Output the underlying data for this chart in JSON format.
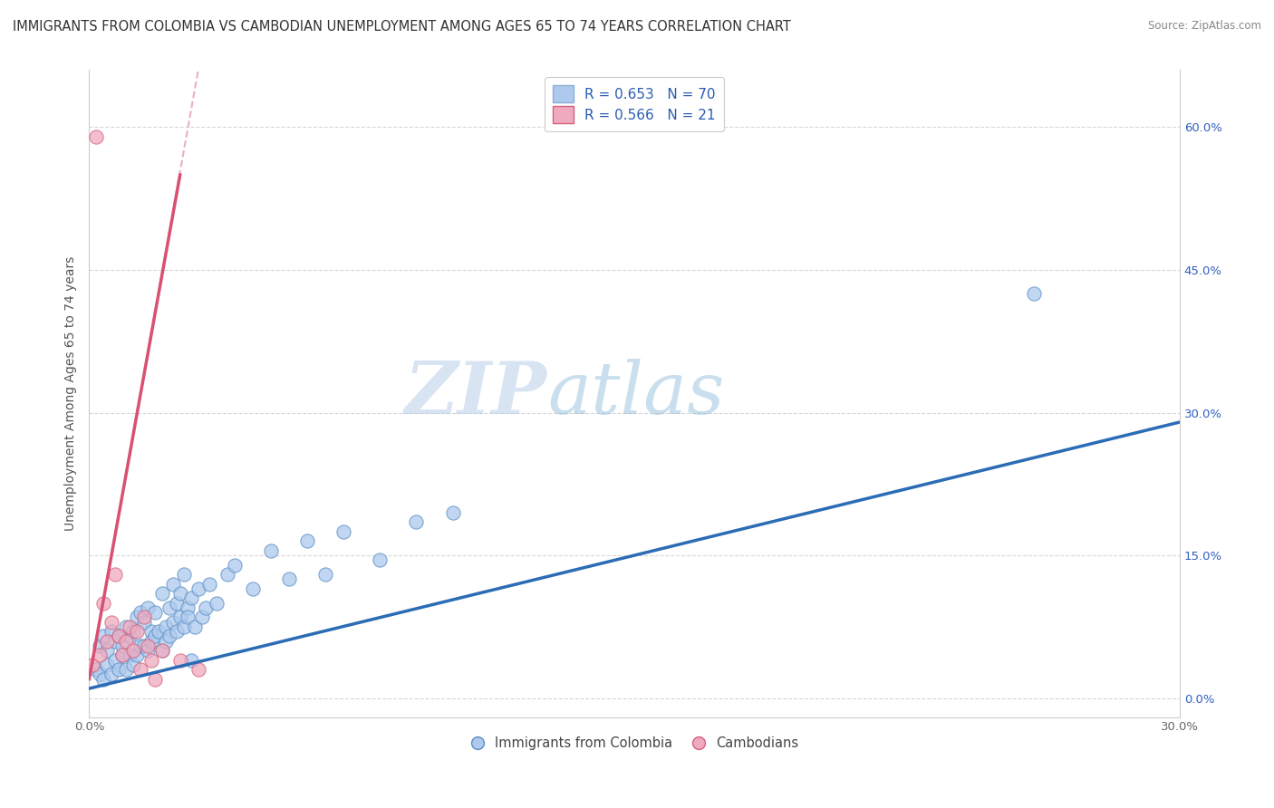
{
  "title": "IMMIGRANTS FROM COLOMBIA VS CAMBODIAN UNEMPLOYMENT AMONG AGES 65 TO 74 YEARS CORRELATION CHART",
  "source": "Source: ZipAtlas.com",
  "ylabel": "Unemployment Among Ages 65 to 74 years",
  "xlim": [
    0.0,
    0.3
  ],
  "ylim": [
    -0.02,
    0.66
  ],
  "xticks": [
    0.0,
    0.05,
    0.1,
    0.15,
    0.2,
    0.25,
    0.3
  ],
  "xticklabels": [
    "0.0%",
    "",
    "",
    "",
    "",
    "",
    "30.0%"
  ],
  "yticks": [
    0.0,
    0.15,
    0.3,
    0.45,
    0.6
  ],
  "right_yticklabels": [
    "0.0%",
    "15.0%",
    "30.0%",
    "45.0%",
    "60.0%"
  ],
  "series_blue": {
    "name": "Immigrants from Colombia",
    "color": "#adc9ed",
    "edge_color": "#5b8ec4",
    "trend_color": "#2b6cb5",
    "trend_style": "-"
  },
  "series_pink": {
    "name": "Cambodians",
    "color": "#f0aabf",
    "edge_color": "#d4607a",
    "trend_color": "#d95070",
    "trend_solid_style": "-",
    "trend_dash_color": "#e8b0be",
    "trend_dash_style": "--"
  },
  "watermark_zip": "ZIP",
  "watermark_atlas": "atlas",
  "background_color": "#ffffff",
  "grid_color": "#d8d8d8",
  "grid_style": "--",
  "title_fontsize": 10.5,
  "axis_label_fontsize": 10,
  "tick_fontsize": 9.5,
  "legend_fontsize": 11,
  "blue_scatter_x": [
    0.002,
    0.003,
    0.003,
    0.004,
    0.004,
    0.005,
    0.005,
    0.006,
    0.006,
    0.007,
    0.007,
    0.008,
    0.008,
    0.009,
    0.009,
    0.01,
    0.01,
    0.011,
    0.011,
    0.012,
    0.012,
    0.013,
    0.013,
    0.014,
    0.014,
    0.015,
    0.015,
    0.016,
    0.016,
    0.017,
    0.017,
    0.018,
    0.018,
    0.019,
    0.02,
    0.02,
    0.021,
    0.021,
    0.022,
    0.022,
    0.023,
    0.023,
    0.024,
    0.024,
    0.025,
    0.025,
    0.026,
    0.026,
    0.027,
    0.027,
    0.028,
    0.028,
    0.029,
    0.03,
    0.031,
    0.032,
    0.033,
    0.035,
    0.038,
    0.04,
    0.045,
    0.05,
    0.055,
    0.06,
    0.065,
    0.07,
    0.08,
    0.09,
    0.1,
    0.26
  ],
  "blue_scatter_y": [
    0.03,
    0.025,
    0.055,
    0.02,
    0.065,
    0.035,
    0.05,
    0.025,
    0.07,
    0.04,
    0.06,
    0.03,
    0.065,
    0.045,
    0.055,
    0.03,
    0.075,
    0.045,
    0.065,
    0.035,
    0.07,
    0.045,
    0.085,
    0.055,
    0.09,
    0.055,
    0.08,
    0.05,
    0.095,
    0.07,
    0.06,
    0.09,
    0.065,
    0.07,
    0.05,
    0.11,
    0.075,
    0.06,
    0.095,
    0.065,
    0.08,
    0.12,
    0.07,
    0.1,
    0.085,
    0.11,
    0.075,
    0.13,
    0.095,
    0.085,
    0.04,
    0.105,
    0.075,
    0.115,
    0.085,
    0.095,
    0.12,
    0.1,
    0.13,
    0.14,
    0.115,
    0.155,
    0.125,
    0.165,
    0.13,
    0.175,
    0.145,
    0.185,
    0.195,
    0.425
  ],
  "pink_scatter_x": [
    0.001,
    0.002,
    0.003,
    0.004,
    0.005,
    0.006,
    0.007,
    0.008,
    0.009,
    0.01,
    0.011,
    0.012,
    0.013,
    0.014,
    0.015,
    0.016,
    0.017,
    0.018,
    0.02,
    0.025,
    0.03
  ],
  "pink_scatter_y": [
    0.035,
    0.59,
    0.045,
    0.1,
    0.06,
    0.08,
    0.13,
    0.065,
    0.045,
    0.06,
    0.075,
    0.05,
    0.07,
    0.03,
    0.085,
    0.055,
    0.04,
    0.02,
    0.05,
    0.04,
    0.03
  ],
  "blue_trend_x": [
    0.0,
    0.3
  ],
  "blue_trend_y": [
    0.01,
    0.29
  ],
  "pink_solid_trend_x": [
    0.0,
    0.025
  ],
  "pink_solid_trend_y": [
    0.02,
    0.55
  ],
  "pink_dash_trend_x": [
    0.0,
    0.03
  ],
  "pink_dash_trend_y": [
    0.02,
    0.66
  ]
}
